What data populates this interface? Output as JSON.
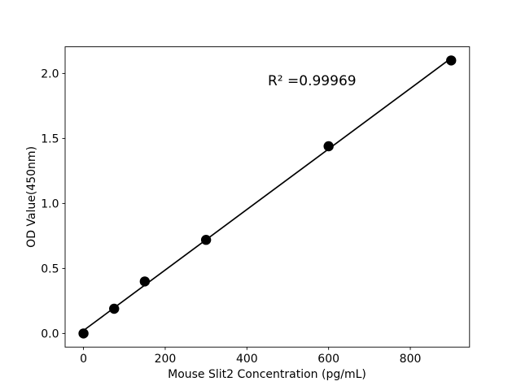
{
  "chart_data": {
    "type": "scatter",
    "title": "",
    "xlabel": "Mouse Slit2 Concentration (pg/mL)",
    "ylabel": "OD Value(450nm)",
    "annotation": "R² =0.99969",
    "x": [
      0,
      75,
      150,
      300,
      600,
      900
    ],
    "y": [
      0.0,
      0.19,
      0.4,
      0.72,
      1.44,
      2.1
    ],
    "xlim": [
      -45,
      945
    ],
    "ylim": [
      -0.105,
      2.205
    ],
    "xticks": [
      0,
      200,
      400,
      600,
      800
    ],
    "yticks": [
      0.0,
      0.5,
      1.0,
      1.5,
      2.0
    ],
    "ytick_decimals": 1,
    "grid": false,
    "legend": null,
    "fit_line": true,
    "colors": {
      "marker": "#000000",
      "line": "#000000",
      "text": "#000000",
      "spine": "#000000",
      "background": "#ffffff"
    }
  }
}
